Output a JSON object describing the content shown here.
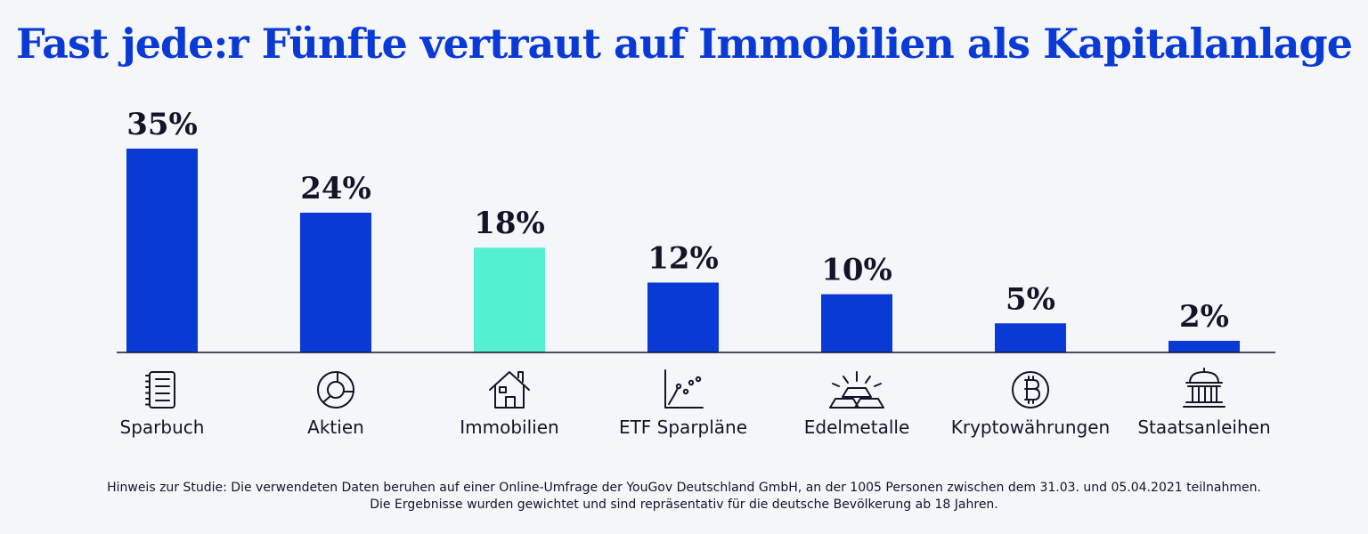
{
  "chart_data": {
    "type": "bar",
    "title": "Fast jede:r Fünfte vertraut auf Immobilien als Kapitalanlage",
    "categories": [
      "Sparbuch",
      "Aktien",
      "Immobilien",
      "ETF Sparpläne",
      "Edelmetalle",
      "Kryptowährungen",
      "Staatsanleihen"
    ],
    "values": [
      35,
      24,
      18,
      12,
      10,
      5,
      2
    ],
    "value_labels": [
      "35%",
      "24%",
      "18%",
      "12%",
      "10%",
      "5%",
      "2%"
    ],
    "icons": [
      "notebook-icon",
      "pie-chart-icon",
      "house-icon",
      "scatter-chart-icon",
      "gold-bars-icon",
      "bitcoin-icon",
      "bank-icon"
    ],
    "highlight_index": 2,
    "ylim": [
      0,
      35
    ],
    "xlabel": "",
    "ylabel": "",
    "grid": false
  },
  "colors": {
    "bar": "#0a3ad6",
    "highlight": "#55f0d2",
    "title": "#0a3ad6",
    "text": "#141428",
    "background": "#f5f6fa"
  },
  "footnote": {
    "line1": "Hinweis zur Studie: Die verwendeten Daten beruhen auf einer Online-Umfrage der YouGov Deutschland GmbH, an der 1005 Personen zwischen dem 31.03. und 05.04.2021 teilnahmen.",
    "line2": "Die Ergebnisse wurden gewichtet und sind repräsentativ für die deutsche Bevölkerung ab 18 Jahren."
  }
}
